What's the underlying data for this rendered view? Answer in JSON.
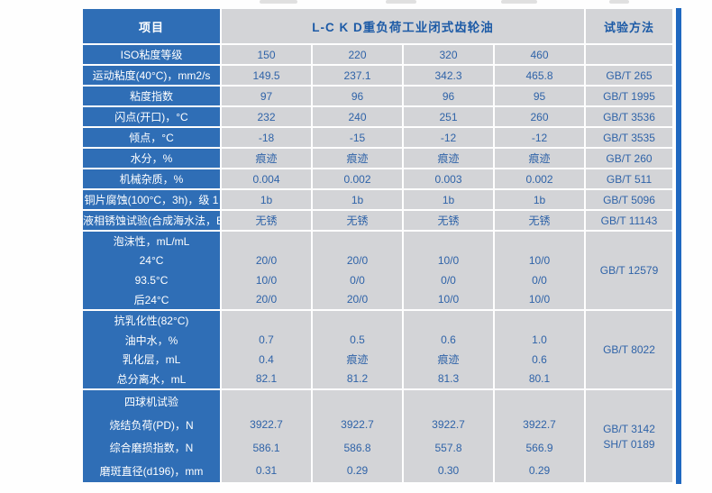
{
  "palette": {
    "label_bg": "#2f6eb6",
    "cell_bg": "#d3d4d7",
    "value_text": "#2f63a8",
    "header_text": "#1c5aa6",
    "accent_bar": "#1f68c0"
  },
  "table": {
    "header": {
      "item": "项目",
      "product": "L-C K D重负荷工业闭式齿轮油",
      "method": "试验方法"
    },
    "simple_rows": [
      {
        "label": "ISO粘度等级",
        "values": [
          "150",
          "220",
          "320",
          "460"
        ],
        "method": ""
      },
      {
        "label": "运动粘度(40°C)，mm2/s",
        "values": [
          "149.5",
          "237.1",
          "342.3",
          "465.8"
        ],
        "method": "GB/T 265"
      },
      {
        "label": "粘度指数",
        "values": [
          "97",
          "96",
          "96",
          "95"
        ],
        "method": "GB/T 1995"
      },
      {
        "label": "闪点(开口)，°C",
        "values": [
          "232",
          "240",
          "251",
          "260"
        ],
        "method": "GB/T 3536"
      },
      {
        "label": "倾点，°C",
        "values": [
          "-18",
          "-15",
          "-12",
          "-12"
        ],
        "method": "GB/T 3535"
      },
      {
        "label": "水分，%",
        "values": [
          "痕迹",
          "痕迹",
          "痕迹",
          "痕迹"
        ],
        "method": "GB/T 260"
      },
      {
        "label": "机械杂质，%",
        "values": [
          "0.004",
          "0.002",
          "0.003",
          "0.002"
        ],
        "method": "GB/T 511"
      },
      {
        "label": "铜片腐蚀(100°C，3h)，级 1",
        "values": [
          "1b",
          "1b",
          "1b",
          "1b"
        ],
        "method": "GB/T 5096"
      },
      {
        "label": "液相锈蚀试验(合成海水法，B法)",
        "values": [
          "无锈",
          "无锈",
          "无锈",
          "无锈"
        ],
        "method": "GB/T 11143"
      }
    ],
    "groups": [
      {
        "header": "泡沫性，mL/mL",
        "rows": [
          {
            "label": "24°C",
            "values": [
              "20/0",
              "20/0",
              "10/0",
              "10/0"
            ]
          },
          {
            "label": "93.5°C",
            "values": [
              "10/0",
              "0/0",
              "0/0",
              "0/0"
            ]
          },
          {
            "label": "后24°C",
            "values": [
              "20/0",
              "20/0",
              "10/0",
              "10/0"
            ]
          }
        ],
        "methods": [
          "GB/T 12579"
        ]
      },
      {
        "header": "抗乳化性(82°C)",
        "rows": [
          {
            "label": "油中水，%",
            "values": [
              "0.7",
              "0.5",
              "0.6",
              "1.0"
            ]
          },
          {
            "label": "乳化层，mL",
            "values": [
              "0.4",
              "痕迹",
              "痕迹",
              "0.6"
            ]
          },
          {
            "label": "总分离水，mL",
            "values": [
              "82.1",
              "81.2",
              "81.3",
              "80.1"
            ]
          }
        ],
        "methods": [
          "GB/T 8022"
        ]
      },
      {
        "header": "四球机试验",
        "rows": [
          {
            "label": "烧结负荷(PD)，N",
            "values": [
              "3922.7",
              "3922.7",
              "3922.7",
              "3922.7"
            ]
          },
          {
            "label": "综合磨损指数，N",
            "values": [
              "586.1",
              "586.8",
              "557.8",
              "566.9"
            ]
          },
          {
            "label": "磨斑直径(d196)，mm",
            "values": [
              "0.31",
              "0.29",
              "0.30",
              "0.29"
            ]
          }
        ],
        "methods": [
          "GB/T 3142",
          "SH/T 0189"
        ]
      }
    ]
  }
}
